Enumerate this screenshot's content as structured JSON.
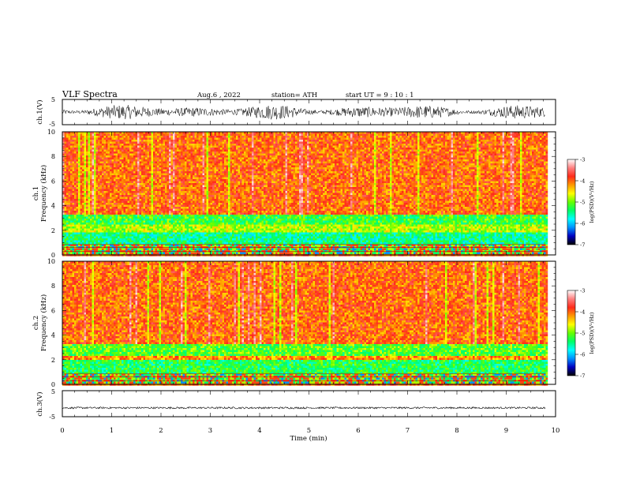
{
  "header": {
    "title": "VLF  Spectra",
    "date": "Aug.6   , 2022",
    "station": "station= ATH",
    "start": "start  UT  =    9  : 10 : 1"
  },
  "chart_data": [
    {
      "type": "line",
      "name": "ch1-waveform",
      "ylabel": "ch.1(V)",
      "ylim": [
        -5,
        5
      ],
      "yticks": [
        "5",
        "-5"
      ],
      "xlim": [
        0,
        10
      ],
      "data_extent_x": [
        0,
        9.8
      ],
      "amplitude_range": [
        -3,
        3
      ]
    },
    {
      "type": "heatmap",
      "name": "ch1-spectrogram",
      "ylabel": "ch.1",
      "ylabel2": "Frequency  (kHz)",
      "ylim": [
        0,
        10
      ],
      "yticks": [
        "0",
        "2",
        "4",
        "6",
        "8",
        "10"
      ],
      "xlim": [
        0,
        10
      ],
      "data_extent_x": [
        0,
        9.8
      ],
      "bands": [
        {
          "from": 0,
          "to": 0.9,
          "level": "low-mixed"
        },
        {
          "from": 0.9,
          "to": 1.9,
          "level": "-5.5"
        },
        {
          "from": 1.9,
          "to": 2.4,
          "level": "-4.8"
        },
        {
          "from": 2.4,
          "to": 3.3,
          "level": "-5.2"
        },
        {
          "from": 3.3,
          "to": 10,
          "level": "-4"
        }
      ]
    },
    {
      "type": "heatmap",
      "name": "ch2-spectrogram",
      "ylabel": "ch.2",
      "ylabel2": "Frequency  (kHz)",
      "ylim": [
        0,
        10
      ],
      "yticks": [
        "0",
        "2",
        "4",
        "6",
        "8",
        "10"
      ],
      "xlim": [
        0,
        10
      ],
      "data_extent_x": [
        0,
        9.8
      ],
      "bands": [
        {
          "from": 0,
          "to": 0.9,
          "level": "low-mixed"
        },
        {
          "from": 0.9,
          "to": 2.0,
          "level": "-5.3"
        },
        {
          "from": 2.0,
          "to": 2.3,
          "level": "-4.2"
        },
        {
          "from": 2.3,
          "to": 3.3,
          "level": "-5.1"
        },
        {
          "from": 3.3,
          "to": 10,
          "level": "-4"
        }
      ]
    },
    {
      "type": "line",
      "name": "ch3-waveform",
      "ylabel": "ch.3(V)",
      "ylim": [
        -5,
        5
      ],
      "yticks": [
        "5",
        "-5"
      ],
      "xlim": [
        0,
        10
      ],
      "data_extent_x": [
        0,
        9.8
      ],
      "level": -1.6,
      "amplitude": 0.35
    }
  ],
  "xaxis": {
    "label": "Time  (min)",
    "ticks": [
      "0",
      "1",
      "2",
      "3",
      "4",
      "5",
      "6",
      "7",
      "8",
      "9",
      "10"
    ]
  },
  "colorbar": {
    "label": "log(PSD)(V²/Hz)",
    "range": [
      -7,
      -3
    ],
    "ticks": [
      "-3",
      "-4",
      "-5",
      "-6",
      "-7"
    ],
    "colors": [
      "#000000",
      "#0000c0",
      "#0090ff",
      "#00ffff",
      "#00ff66",
      "#66ff00",
      "#ffff00",
      "#ff9900",
      "#ff2a1a",
      "#ff8080",
      "#ffffff"
    ]
  }
}
